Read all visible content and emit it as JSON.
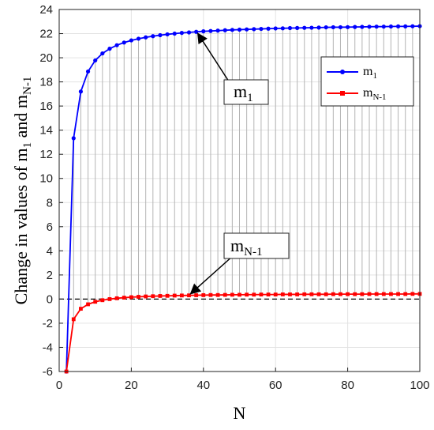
{
  "chart_data": {
    "type": "line",
    "xlabel": "N",
    "ylabel_parts": {
      "main": "Change in values of m",
      "sub1": "1",
      "mid": " and m",
      "sub2": "N-1"
    },
    "xlim": [
      0,
      100
    ],
    "ylim": [
      -6,
      24
    ],
    "xticks": [
      0,
      20,
      40,
      60,
      80,
      100
    ],
    "yticks": [
      -6,
      -4,
      -2,
      0,
      2,
      4,
      6,
      8,
      10,
      12,
      14,
      16,
      18,
      20,
      22,
      24
    ],
    "grid": true,
    "legend_position": "top-right",
    "x": [
      2,
      4,
      6,
      8,
      10,
      12,
      14,
      16,
      18,
      20,
      22,
      24,
      26,
      28,
      30,
      32,
      34,
      36,
      38,
      40,
      42,
      44,
      46,
      48,
      50,
      52,
      54,
      56,
      58,
      60,
      62,
      64,
      66,
      68,
      70,
      72,
      74,
      76,
      78,
      80,
      82,
      84,
      86,
      88,
      90,
      92,
      94,
      96,
      98,
      100
    ],
    "series": [
      {
        "name": "m",
        "name_sub": "1",
        "color": "#0000ff",
        "marker": "circle",
        "values": [
          -6,
          13.33,
          17.2,
          18.86,
          19.78,
          20.36,
          20.75,
          21.04,
          21.26,
          21.44,
          21.58,
          21.69,
          21.79,
          21.87,
          21.94,
          22.0,
          22.06,
          22.1,
          22.15,
          22.19,
          22.22,
          22.25,
          22.28,
          22.31,
          22.33,
          22.35,
          22.37,
          22.39,
          22.41,
          22.43,
          22.44,
          22.46,
          22.47,
          22.48,
          22.49,
          22.5,
          22.52,
          22.53,
          22.53,
          22.54,
          22.55,
          22.56,
          22.57,
          22.58,
          22.58,
          22.59,
          22.6,
          22.6,
          22.61,
          22.62
        ]
      },
      {
        "name": "m",
        "name_sub": "N-1",
        "color": "#ff0000",
        "marker": "square",
        "values": [
          -6,
          -1.67,
          -0.8,
          -0.43,
          -0.22,
          -0.09,
          0.0,
          0.07,
          0.12,
          0.16,
          0.19,
          0.22,
          0.24,
          0.26,
          0.27,
          0.29,
          0.3,
          0.31,
          0.32,
          0.33,
          0.34,
          0.34,
          0.35,
          0.36,
          0.36,
          0.37,
          0.37,
          0.38,
          0.38,
          0.38,
          0.39,
          0.39,
          0.39,
          0.4,
          0.4,
          0.4,
          0.4,
          0.41,
          0.41,
          0.41,
          0.41,
          0.41,
          0.42,
          0.42,
          0.42,
          0.42,
          0.42,
          0.42,
          0.43,
          0.43
        ]
      }
    ],
    "reference_line": {
      "y": 0,
      "style": "dashed",
      "color": "#000000"
    },
    "annotations": [
      {
        "label": "m",
        "label_sub": "1",
        "arrow_to": [
          38,
          22.15
        ]
      },
      {
        "label": "m",
        "label_sub": "N-1",
        "arrow_to": [
          36,
          0.31
        ]
      }
    ]
  }
}
